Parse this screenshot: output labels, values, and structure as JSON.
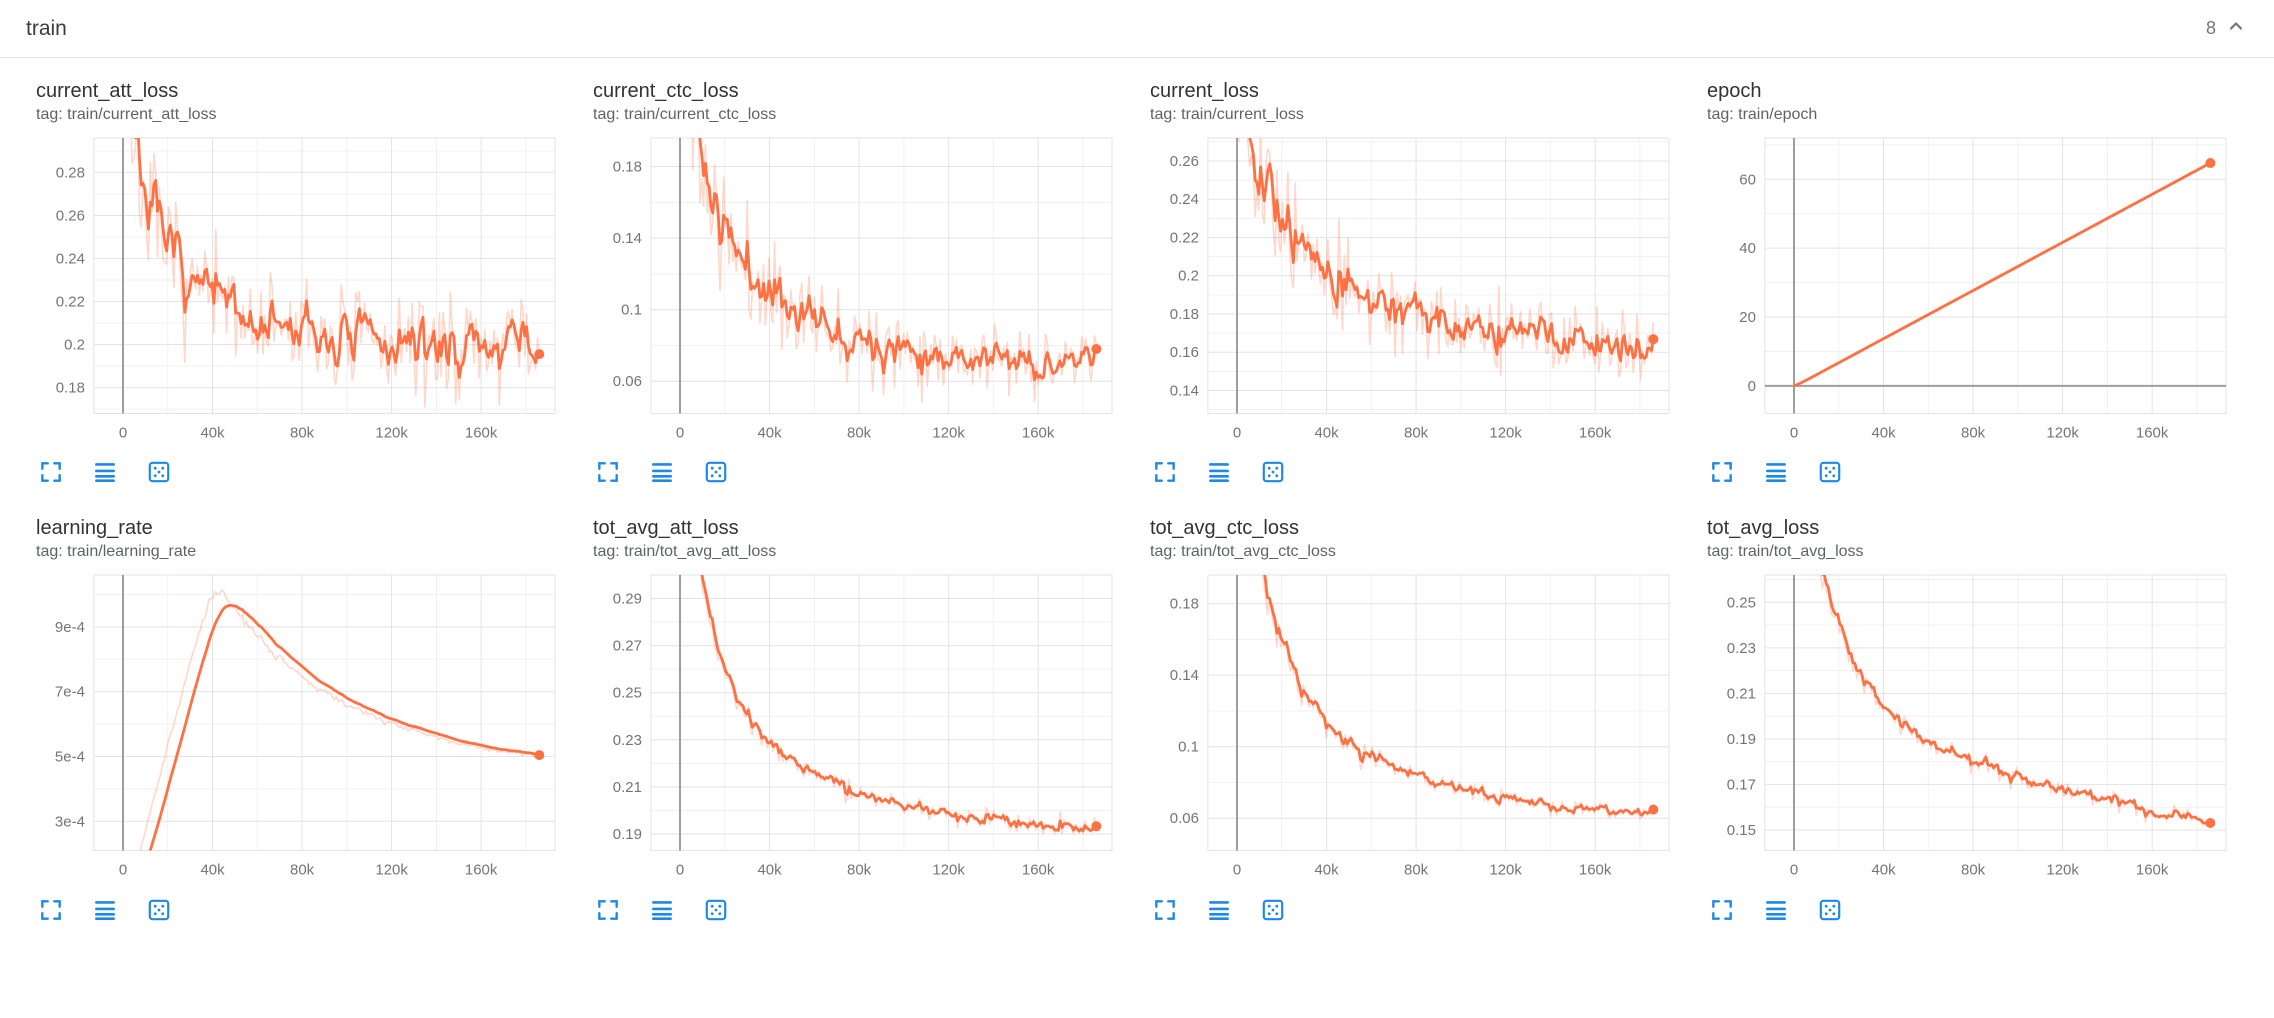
{
  "header": {
    "title": "train",
    "count": "8"
  },
  "colors": {
    "line_orange": "#ff7043",
    "toolbar_blue": "#1e88e5",
    "grid_major": "#e3e3e3",
    "grid_minor": "#f1f1f1",
    "zero_line": "#9e9e9e",
    "tick_text": "#757575"
  },
  "icons": {
    "header_collapse": "chevron-up",
    "card_actions": [
      "fullscreen",
      "log-scale",
      "fit-domain"
    ]
  },
  "chart_data": [
    {
      "type": "line",
      "name": "current_att_loss",
      "tag_line": "tag: train/current_att_loss",
      "color": "#ff7043",
      "xlim": [
        -13000,
        193000
      ],
      "ylim": [
        0.168,
        0.296
      ],
      "x_ticks": [
        {
          "v": 0,
          "label": "0"
        },
        {
          "v": 40000,
          "label": "40k"
        },
        {
          "v": 80000,
          "label": "80k"
        },
        {
          "v": 120000,
          "label": "120k"
        },
        {
          "v": 160000,
          "label": "160k"
        }
      ],
      "y_ticks": [
        {
          "v": 0.18,
          "label": "0.18"
        },
        {
          "v": 0.2,
          "label": "0.2"
        },
        {
          "v": 0.22,
          "label": "0.22"
        },
        {
          "v": 0.24,
          "label": "0.24"
        },
        {
          "v": 0.26,
          "label": "0.26"
        },
        {
          "v": 0.28,
          "label": "0.28"
        }
      ],
      "trend": [
        [
          0,
          0.36
        ],
        [
          3000,
          0.31
        ],
        [
          6000,
          0.285
        ],
        [
          10000,
          0.265
        ],
        [
          15000,
          0.25
        ],
        [
          20000,
          0.24
        ],
        [
          30000,
          0.228
        ],
        [
          40000,
          0.22
        ],
        [
          55000,
          0.212
        ],
        [
          70000,
          0.207
        ],
        [
          90000,
          0.203
        ],
        [
          120000,
          0.2
        ],
        [
          150000,
          0.199
        ],
        [
          186000,
          0.199
        ]
      ],
      "noise": 0.012,
      "smoothing": 0.6,
      "points": 230,
      "seed": 7,
      "end_dot": true
    },
    {
      "type": "line",
      "name": "current_ctc_loss",
      "tag_line": "tag: train/current_ctc_loss",
      "color": "#ff7043",
      "xlim": [
        -13000,
        193000
      ],
      "ylim": [
        0.042,
        0.196
      ],
      "x_ticks": [
        {
          "v": 0,
          "label": "0"
        },
        {
          "v": 40000,
          "label": "40k"
        },
        {
          "v": 80000,
          "label": "80k"
        },
        {
          "v": 120000,
          "label": "120k"
        },
        {
          "v": 160000,
          "label": "160k"
        }
      ],
      "y_ticks": [
        {
          "v": 0.06,
          "label": "0.06"
        },
        {
          "v": 0.1,
          "label": "0.1"
        },
        {
          "v": 0.14,
          "label": "0.14"
        },
        {
          "v": 0.18,
          "label": "0.18"
        }
      ],
      "trend": [
        [
          0,
          0.3
        ],
        [
          3000,
          0.25
        ],
        [
          6000,
          0.21
        ],
        [
          10000,
          0.18
        ],
        [
          15000,
          0.155
        ],
        [
          20000,
          0.14
        ],
        [
          30000,
          0.122
        ],
        [
          40000,
          0.11
        ],
        [
          55000,
          0.098
        ],
        [
          70000,
          0.09
        ],
        [
          90000,
          0.082
        ],
        [
          120000,
          0.075
        ],
        [
          150000,
          0.071
        ],
        [
          186000,
          0.069
        ]
      ],
      "noise": 0.009,
      "smoothing": 0.6,
      "points": 230,
      "seed": 11,
      "end_dot": true
    },
    {
      "type": "line",
      "name": "current_loss",
      "tag_line": "tag: train/current_loss",
      "color": "#ff7043",
      "xlim": [
        -13000,
        193000
      ],
      "ylim": [
        0.128,
        0.272
      ],
      "x_ticks": [
        {
          "v": 0,
          "label": "0"
        },
        {
          "v": 40000,
          "label": "40k"
        },
        {
          "v": 80000,
          "label": "80k"
        },
        {
          "v": 120000,
          "label": "120k"
        },
        {
          "v": 160000,
          "label": "160k"
        }
      ],
      "y_ticks": [
        {
          "v": 0.14,
          "label": "0.14"
        },
        {
          "v": 0.16,
          "label": "0.16"
        },
        {
          "v": 0.18,
          "label": "0.18"
        },
        {
          "v": 0.2,
          "label": "0.2"
        },
        {
          "v": 0.22,
          "label": "0.22"
        },
        {
          "v": 0.24,
          "label": "0.24"
        },
        {
          "v": 0.26,
          "label": "0.26"
        }
      ],
      "trend": [
        [
          0,
          0.33
        ],
        [
          3000,
          0.3
        ],
        [
          6000,
          0.275
        ],
        [
          10000,
          0.255
        ],
        [
          15000,
          0.238
        ],
        [
          20000,
          0.226
        ],
        [
          30000,
          0.21
        ],
        [
          40000,
          0.2
        ],
        [
          55000,
          0.19
        ],
        [
          70000,
          0.184
        ],
        [
          90000,
          0.177
        ],
        [
          120000,
          0.17
        ],
        [
          150000,
          0.165
        ],
        [
          186000,
          0.162
        ]
      ],
      "noise": 0.01,
      "smoothing": 0.6,
      "points": 230,
      "seed": 13,
      "end_dot": true
    },
    {
      "type": "line",
      "name": "epoch",
      "tag_line": "tag: train/epoch",
      "color": "#ff7043",
      "xlim": [
        -13000,
        193000
      ],
      "ylim": [
        -8,
        72
      ],
      "x_ticks": [
        {
          "v": 0,
          "label": "0"
        },
        {
          "v": 40000,
          "label": "40k"
        },
        {
          "v": 80000,
          "label": "80k"
        },
        {
          "v": 120000,
          "label": "120k"
        },
        {
          "v": 160000,
          "label": "160k"
        }
      ],
      "y_ticks": [
        {
          "v": 0,
          "label": "0"
        },
        {
          "v": 20,
          "label": "20"
        },
        {
          "v": 40,
          "label": "40"
        },
        {
          "v": 60,
          "label": "60"
        }
      ],
      "trend": [
        [
          0,
          0
        ],
        [
          186000,
          65
        ]
      ],
      "noise": 0,
      "smoothing": 0.2,
      "points": 60,
      "seed": 1,
      "end_dot": true
    },
    {
      "type": "line",
      "name": "learning_rate",
      "tag_line": "tag: train/learning_rate",
      "color": "#ff7043",
      "xlim": [
        -13000,
        193000
      ],
      "ylim": [
        0.00021,
        0.00106
      ],
      "x_ticks": [
        {
          "v": 0,
          "label": "0"
        },
        {
          "v": 40000,
          "label": "40k"
        },
        {
          "v": 80000,
          "label": "80k"
        },
        {
          "v": 120000,
          "label": "120k"
        },
        {
          "v": 160000,
          "label": "160k"
        }
      ],
      "y_ticks": [
        {
          "v": 0.0003,
          "label": "3e-4"
        },
        {
          "v": 0.0005,
          "label": "5e-4"
        },
        {
          "v": 0.0007,
          "label": "7e-4"
        },
        {
          "v": 0.0009,
          "label": "9e-4"
        }
      ],
      "trend": [
        [
          0,
          3e-05
        ],
        [
          5000,
          0.00014
        ],
        [
          10000,
          0.00027
        ],
        [
          15000,
          0.0004
        ],
        [
          20000,
          0.00053
        ],
        [
          25000,
          0.00066
        ],
        [
          30000,
          0.00079
        ],
        [
          35000,
          0.00091
        ],
        [
          38000,
          0.00097
        ],
        [
          40000,
          0.001
        ],
        [
          43000,
          0.00101
        ],
        [
          46000,
          0.00099
        ],
        [
          50000,
          0.00095
        ],
        [
          55000,
          0.00091
        ],
        [
          60000,
          0.00087
        ],
        [
          70000,
          0.0008
        ],
        [
          80000,
          0.00075
        ],
        [
          90000,
          0.0007
        ],
        [
          100000,
          0.00066
        ],
        [
          110000,
          0.00063
        ],
        [
          120000,
          0.0006
        ],
        [
          135000,
          0.00057
        ],
        [
          150000,
          0.00054
        ],
        [
          165000,
          0.00052
        ],
        [
          186000,
          0.0005
        ]
      ],
      "noise": 4e-06,
      "smoothing": 0.85,
      "points": 200,
      "seed": 3,
      "end_dot": true
    },
    {
      "type": "line",
      "name": "tot_avg_att_loss",
      "tag_line": "tag: train/tot_avg_att_loss",
      "color": "#ff7043",
      "xlim": [
        -13000,
        193000
      ],
      "ylim": [
        0.183,
        0.3
      ],
      "x_ticks": [
        {
          "v": 0,
          "label": "0"
        },
        {
          "v": 40000,
          "label": "40k"
        },
        {
          "v": 80000,
          "label": "80k"
        },
        {
          "v": 120000,
          "label": "120k"
        },
        {
          "v": 160000,
          "label": "160k"
        }
      ],
      "y_ticks": [
        {
          "v": 0.19,
          "label": "0.19"
        },
        {
          "v": 0.21,
          "label": "0.21"
        },
        {
          "v": 0.23,
          "label": "0.23"
        },
        {
          "v": 0.25,
          "label": "0.25"
        },
        {
          "v": 0.27,
          "label": "0.27"
        },
        {
          "v": 0.29,
          "label": "0.29"
        }
      ],
      "trend": [
        [
          0,
          0.36
        ],
        [
          4000,
          0.33
        ],
        [
          8000,
          0.305
        ],
        [
          12000,
          0.285
        ],
        [
          16000,
          0.27
        ],
        [
          20000,
          0.258
        ],
        [
          26000,
          0.247
        ],
        [
          32000,
          0.238
        ],
        [
          40000,
          0.229
        ],
        [
          50000,
          0.221
        ],
        [
          60000,
          0.215
        ],
        [
          72000,
          0.209
        ],
        [
          85000,
          0.205
        ],
        [
          100000,
          0.201
        ],
        [
          120000,
          0.198
        ],
        [
          145000,
          0.195
        ],
        [
          186000,
          0.193
        ]
      ],
      "noise": 0.0022,
      "smoothing": 0.5,
      "points": 220,
      "seed": 17,
      "end_dot": true
    },
    {
      "type": "line",
      "name": "tot_avg_ctc_loss",
      "tag_line": "tag: train/tot_avg_ctc_loss",
      "color": "#ff7043",
      "xlim": [
        -13000,
        193000
      ],
      "ylim": [
        0.042,
        0.196
      ],
      "x_ticks": [
        {
          "v": 0,
          "label": "0"
        },
        {
          "v": 40000,
          "label": "40k"
        },
        {
          "v": 80000,
          "label": "80k"
        },
        {
          "v": 120000,
          "label": "120k"
        },
        {
          "v": 160000,
          "label": "160k"
        }
      ],
      "y_ticks": [
        {
          "v": 0.06,
          "label": "0.06"
        },
        {
          "v": 0.1,
          "label": "0.1"
        },
        {
          "v": 0.14,
          "label": "0.14"
        },
        {
          "v": 0.18,
          "label": "0.18"
        }
      ],
      "trend": [
        [
          0,
          0.34
        ],
        [
          4000,
          0.27
        ],
        [
          8000,
          0.225
        ],
        [
          12000,
          0.195
        ],
        [
          16000,
          0.172
        ],
        [
          20000,
          0.156
        ],
        [
          26000,
          0.138
        ],
        [
          32000,
          0.125
        ],
        [
          40000,
          0.112
        ],
        [
          50000,
          0.101
        ],
        [
          60000,
          0.094
        ],
        [
          72000,
          0.087
        ],
        [
          85000,
          0.081
        ],
        [
          100000,
          0.076
        ],
        [
          120000,
          0.071
        ],
        [
          145000,
          0.066
        ],
        [
          186000,
          0.063
        ]
      ],
      "noise": 0.0022,
      "smoothing": 0.5,
      "points": 220,
      "seed": 19,
      "end_dot": true
    },
    {
      "type": "line",
      "name": "tot_avg_loss",
      "tag_line": "tag: train/tot_avg_loss",
      "color": "#ff7043",
      "xlim": [
        -13000,
        193000
      ],
      "ylim": [
        0.141,
        0.262
      ],
      "x_ticks": [
        {
          "v": 0,
          "label": "0"
        },
        {
          "v": 40000,
          "label": "40k"
        },
        {
          "v": 80000,
          "label": "80k"
        },
        {
          "v": 120000,
          "label": "120k"
        },
        {
          "v": 160000,
          "label": "160k"
        }
      ],
      "y_ticks": [
        {
          "v": 0.15,
          "label": "0.15"
        },
        {
          "v": 0.17,
          "label": "0.17"
        },
        {
          "v": 0.19,
          "label": "0.19"
        },
        {
          "v": 0.21,
          "label": "0.21"
        },
        {
          "v": 0.23,
          "label": "0.23"
        },
        {
          "v": 0.25,
          "label": "0.25"
        }
      ],
      "trend": [
        [
          0,
          0.35
        ],
        [
          4000,
          0.31
        ],
        [
          8000,
          0.285
        ],
        [
          12000,
          0.265
        ],
        [
          16000,
          0.25
        ],
        [
          20000,
          0.238
        ],
        [
          26000,
          0.225
        ],
        [
          32000,
          0.214
        ],
        [
          40000,
          0.204
        ],
        [
          50000,
          0.195
        ],
        [
          60000,
          0.189
        ],
        [
          72000,
          0.183
        ],
        [
          85000,
          0.178
        ],
        [
          100000,
          0.173
        ],
        [
          120000,
          0.168
        ],
        [
          145000,
          0.162
        ],
        [
          160000,
          0.157
        ],
        [
          186000,
          0.154
        ]
      ],
      "noise": 0.002,
      "smoothing": 0.5,
      "points": 220,
      "seed": 23,
      "end_dot": true
    }
  ]
}
